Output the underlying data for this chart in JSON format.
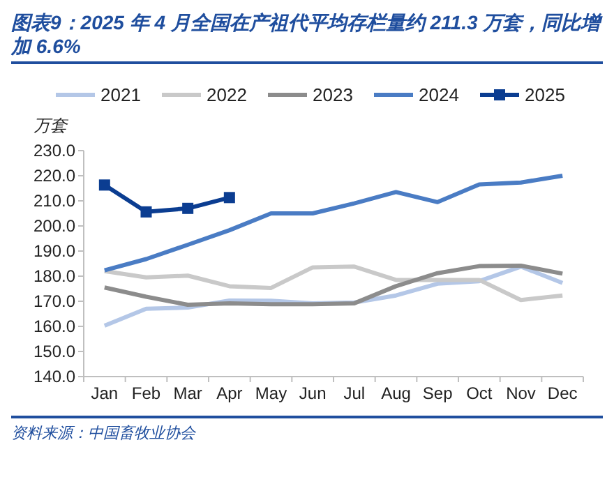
{
  "chart_data": {
    "type": "line",
    "title": "图表9：2025 年 4 月全国在产祖代平均存栏量约 211.3 万套，同比增加 6.6%",
    "ylabel": "万套",
    "annotations": [
      "资料来源：中国畜牧业协会"
    ],
    "categories": [
      "Jan",
      "Feb",
      "Mar",
      "Apr",
      "May",
      "Jun",
      "Jul",
      "Aug",
      "Sep",
      "Oct",
      "Nov",
      "Dec"
    ],
    "series": [
      {
        "name": "2021",
        "color": "#b4c7e7",
        "marker": "none",
        "values": [
          160.3,
          167,
          167.5,
          170.3,
          170.2,
          169.2,
          169.5,
          172.3,
          177,
          178,
          183.8,
          177.3
        ]
      },
      {
        "name": "2022",
        "color": "#c9c9c9",
        "marker": "none",
        "values": [
          182,
          179.5,
          180.2,
          176,
          175.3,
          183.5,
          183.8,
          178.5,
          178.5,
          178.5,
          170.5,
          172.3
        ]
      },
      {
        "name": "2023",
        "color": "#8c8c8c",
        "marker": "none",
        "values": [
          175.5,
          171.8,
          168.6,
          169.2,
          168.8,
          168.8,
          169.2,
          176,
          181.2,
          184,
          184.2,
          181
        ]
      },
      {
        "name": "2024",
        "color": "#4a7cc4",
        "marker": "none",
        "values": [
          182.3,
          186.8,
          192.5,
          198.3,
          205,
          205,
          209,
          213.5,
          209.5,
          216.5,
          217.3,
          220
        ]
      },
      {
        "name": "2025",
        "color": "#0b3d91",
        "marker": "square",
        "values": [
          216.3,
          205.6,
          207,
          211.3,
          null,
          null,
          null,
          null,
          null,
          null,
          null,
          null
        ]
      }
    ],
    "ylim": [
      140,
      230
    ],
    "yticks": [
      {
        "value": 140,
        "label": "140.0"
      },
      {
        "value": 150,
        "label": "150.0"
      },
      {
        "value": 160,
        "label": "160.0"
      },
      {
        "value": 170,
        "label": "170.0"
      },
      {
        "value": 180,
        "label": "180.0"
      },
      {
        "value": 190,
        "label": "190.0"
      },
      {
        "value": 200,
        "label": "200.0"
      },
      {
        "value": 210,
        "label": "210.0"
      },
      {
        "value": 220,
        "label": "220.0"
      },
      {
        "value": 230,
        "label": "230.0"
      }
    ],
    "grid": false,
    "legend": "top",
    "line_style": "solid"
  }
}
